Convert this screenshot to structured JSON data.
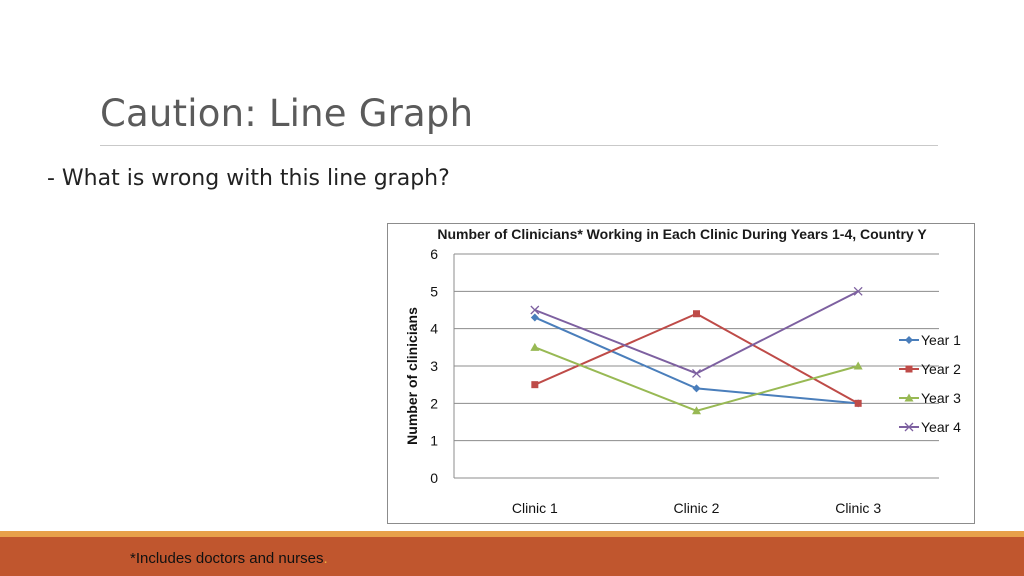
{
  "slide": {
    "title": "Caution: Line Graph",
    "bullet": "- What is wrong with this line graph?",
    "footnote": "*Includes doctors and nurses",
    "footnote_dot": "."
  },
  "colors": {
    "band": "#c0562e",
    "band_top": "#e8a04a"
  },
  "chart_data": {
    "type": "line",
    "title": "Number of Clinicians* Working in Each Clinic During Years 1-4, Country Y",
    "ylabel": "Number of clinicians",
    "xlabel": "",
    "categories": [
      "Clinic 1",
      "Clinic 2",
      "Clinic 3"
    ],
    "ylim": [
      0,
      6
    ],
    "yticks": [
      0,
      1,
      2,
      3,
      4,
      5,
      6
    ],
    "grid": true,
    "legend": "right",
    "series": [
      {
        "name": "Year 1",
        "values": [
          4.3,
          2.4,
          2.0
        ],
        "color": "#4a7ebb",
        "marker": "diamond"
      },
      {
        "name": "Year 2",
        "values": [
          2.5,
          4.4,
          2.0
        ],
        "color": "#be4b48",
        "marker": "square"
      },
      {
        "name": "Year 3",
        "values": [
          3.5,
          1.8,
          3.0
        ],
        "color": "#98b954",
        "marker": "triangle"
      },
      {
        "name": "Year 4",
        "values": [
          4.5,
          2.8,
          5.0
        ],
        "color": "#7d60a0",
        "marker": "x"
      }
    ]
  }
}
